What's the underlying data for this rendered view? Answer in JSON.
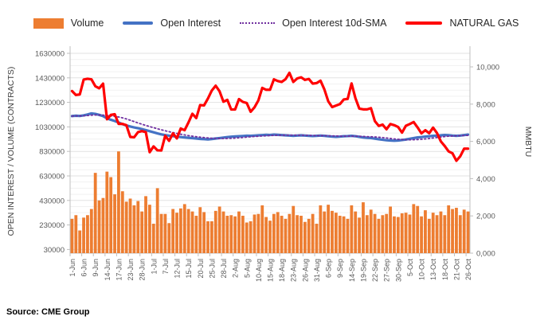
{
  "source": "Source: CME Group",
  "legend": {
    "items": [
      {
        "label": "Volume",
        "color": "#ED7D31",
        "swatch": "bar"
      },
      {
        "label": "Open Interest",
        "color": "#4472C4",
        "swatch": "line"
      },
      {
        "label": "Open Interest 10d-SMA",
        "color": "#7030A0",
        "swatch": "dotted-line"
      },
      {
        "label": "NATURAL GAS",
        "color": "#FF0000",
        "swatch": "line"
      }
    ]
  },
  "chart_data": {
    "type": "bar",
    "subtype": "combo-bar-and-lines",
    "x_tick_labels": [
      "1-Jun",
      "6-Jun",
      "9-Jun",
      "14-Jun",
      "17-Jun",
      "23-Jun",
      "28-Jun",
      "1-Jul",
      "7-Jul",
      "12-Jul",
      "15-Jul",
      "20-Jul",
      "25-Jul",
      "28-Jul",
      "2-Aug",
      "5-Aug",
      "10-Aug",
      "15-Aug",
      "18-Aug",
      "23-Aug",
      "26-Aug",
      "31-Aug",
      "6-Sep",
      "9-Sep",
      "14-Sep",
      "19-Sep",
      "22-Sep",
      "27-Sep",
      "30-Sep",
      "5-Oct",
      "10-Oct",
      "13-Oct",
      "18-Oct",
      "21-Oct",
      "26-Oct"
    ],
    "x_tick_interval": 3,
    "n_points": 103,
    "grid": "horizontal-minor-and-major",
    "legend_position": "top",
    "axes": {
      "left": {
        "title": "OPEN INTEREST / VOLUME (CONTRACTS)",
        "tick_values": [
          30000,
          230000,
          430000,
          630000,
          830000,
          1030000,
          1230000,
          1430000,
          1630000
        ],
        "tick_labels": [
          "30000",
          "230000",
          "430000",
          "630000",
          "830000",
          "1030000",
          "1230000",
          "1430000",
          "1630000"
        ],
        "range": [
          0,
          1630000
        ],
        "minor_step": 50000
      },
      "right": {
        "title": "MMBTU",
        "tick_values": [
          0,
          2000,
          4000,
          6000,
          8000,
          10000
        ],
        "tick_labels": [
          "0,000",
          "2,000",
          "4,000",
          "6,000",
          "8,000",
          "10,000"
        ],
        "range": [
          0,
          10780
        ]
      }
    },
    "series": [
      {
        "name": "Volume",
        "type": "bar",
        "axis": "left",
        "color": "#ED7D31",
        "values": [
          280000,
          310000,
          185000,
          290000,
          310000,
          360000,
          655000,
          430000,
          450000,
          665000,
          620000,
          480000,
          830000,
          505000,
          420000,
          445000,
          390000,
          425000,
          340000,
          465000,
          395000,
          240000,
          530000,
          320000,
          320000,
          245000,
          360000,
          330000,
          365000,
          400000,
          360000,
          340000,
          305000,
          375000,
          335000,
          260000,
          260000,
          345000,
          380000,
          340000,
          305000,
          310000,
          300000,
          340000,
          305000,
          250000,
          260000,
          315000,
          320000,
          390000,
          295000,
          265000,
          320000,
          335000,
          305000,
          280000,
          320000,
          385000,
          310000,
          305000,
          255000,
          280000,
          320000,
          240000,
          390000,
          340000,
          395000,
          345000,
          330000,
          305000,
          300000,
          280000,
          390000,
          340000,
          290000,
          415000,
          310000,
          355000,
          320000,
          280000,
          310000,
          320000,
          380000,
          300000,
          295000,
          325000,
          330000,
          315000,
          400000,
          385000,
          300000,
          350000,
          280000,
          330000,
          310000,
          340000,
          310000,
          390000,
          360000,
          370000,
          310000,
          355000,
          340000
        ]
      },
      {
        "name": "Open Interest",
        "type": "line",
        "axis": "left",
        "color": "#4472C4",
        "values": [
          1118000,
          1121000,
          1119000,
          1124000,
          1131000,
          1140000,
          1136000,
          1128000,
          1118000,
          1100000,
          1088000,
          1078000,
          1066000,
          1052000,
          1042000,
          1033000,
          1026000,
          1019000,
          1012000,
          1004000,
          995000,
          986000,
          977000,
          969000,
          963000,
          958000,
          954000,
          950000,
          947000,
          944000,
          941000,
          938000,
          935000,
          932000,
          930000,
          928000,
          931000,
          935000,
          939000,
          943000,
          947000,
          950000,
          952000,
          954000,
          956000,
          958000,
          957000,
          959000,
          961000,
          963000,
          965000,
          964000,
          967000,
          965000,
          963000,
          961000,
          959000,
          957000,
          959000,
          961000,
          959000,
          957000,
          955000,
          957000,
          959000,
          957000,
          954000,
          951000,
          949000,
          951000,
          954000,
          955000,
          957000,
          954000,
          949000,
          944000,
          941000,
          939000,
          934000,
          929000,
          925000,
          921000,
          919000,
          917000,
          919000,
          923000,
          927000,
          933000,
          939000,
          944000,
          947000,
          951000,
          954000,
          957000,
          959000,
          961000,
          964000,
          962000,
          959000,
          957000,
          959000,
          963000,
          967000
        ]
      },
      {
        "name": "Open Interest 10d-SMA",
        "type": "dotted-line",
        "axis": "left",
        "color": "#7030A0",
        "derived_from": "Open Interest",
        "window": 10
      },
      {
        "name": "NATURAL GAS",
        "type": "line",
        "axis": "right",
        "color": "#FF0000",
        "values": [
          8700,
          8490,
          8520,
          9320,
          9360,
          9330,
          8960,
          8850,
          9100,
          7190,
          7420,
          7460,
          6940,
          6940,
          6870,
          6240,
          6220,
          6500,
          6550,
          6500,
          5420,
          5730,
          5520,
          5510,
          6300,
          6030,
          6430,
          6160,
          6690,
          6600,
          7020,
          7480,
          7250,
          7950,
          7930,
          8300,
          8730,
          8990,
          8690,
          8130,
          8230,
          7710,
          7710,
          8270,
          8120,
          8060,
          7590,
          7830,
          8200,
          8870,
          8770,
          8770,
          9330,
          9240,
          9190,
          9340,
          9680,
          9190,
          9380,
          9440,
          9300,
          9350,
          9100,
          9130,
          9260,
          8790,
          8150,
          7840,
          7920,
          8000,
          8250,
          8280,
          9110,
          8320,
          7760,
          7720,
          7720,
          7780,
          7090,
          6830,
          6900,
          6650,
          6930,
          6870,
          6770,
          6470,
          6840,
          6930,
          7040,
          6750,
          6430,
          6600,
          6440,
          6740,
          6450,
          6000,
          5750,
          5460,
          5360,
          4960,
          5200,
          5610,
          5610
        ]
      }
    ]
  }
}
